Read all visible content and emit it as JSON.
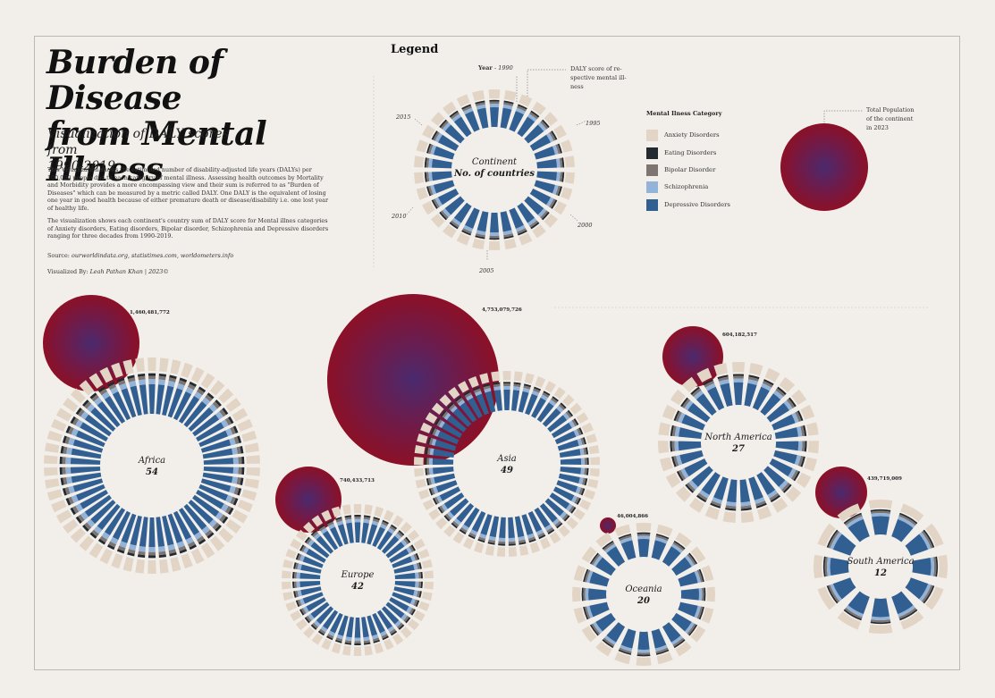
{
  "header": {
    "title_line1": "Burden of Disease",
    "title_line2": "from Mental Illness",
    "subtitle_line1": "Visualization of DALY scores from",
    "subtitle_line2": "1990-2019",
    "description1": "This Visualization shows the estimated number of disability-adjusted life years (DALYs) per 100,000 people due to each category of mental illness. Assessing health outcomes by Mortality and Morbidity provides a more encompassing view and their sum is referred to as \"Burden of Diseases\" which can be measured by a metric called DALY. One DALY is the equivalent of losing one year in good health because of either premature death or disease/disability i.e. one lost year of healthy life.",
    "description2": "The visualization shows each continent's country sum of DALY score for Mental illnes categories of Anxiety disorders, Eating disorders, Bipolar disorder, Schizophrenia and Depressive disorders ranging for three decades from 1990-2019.",
    "source_label": "Source:",
    "source_value": "ourworldindata.org, statistimes.com, worldometers.info",
    "author_label": "Visualized By:",
    "author_value": "Leah Pathan Khan | 2023©"
  },
  "legend": {
    "title": "Legend",
    "year_label": "Year",
    "year_start": "- 1990",
    "daly_note_line1": "DALY score of re-",
    "daly_note_line2": "spective mental ill-",
    "daly_note_line3": "ness",
    "years": [
      "1995",
      "2000",
      "2005",
      "2010",
      "2015"
    ],
    "center_line1": "Continent",
    "center_line2": "No. of countries",
    "category_title": "Mental Ilness Category",
    "categories": [
      {
        "name": "Anxiety Disorders",
        "color": "#e3d5c6"
      },
      {
        "name": "Eating Disorders",
        "color": "#222a30"
      },
      {
        "name": "Bipolar Disorder",
        "color": "#7d7572"
      },
      {
        "name": "Schizophrenia",
        "color": "#94b3d8"
      },
      {
        "name": "Depressive Disorders",
        "color": "#315f91"
      }
    ],
    "population_note_line1": "Total Population",
    "population_note_line2": "of the continent",
    "population_note_line3": "in 2023"
  },
  "colors": {
    "background": "#f2efeb",
    "population_outer": "#8c1027",
    "population_inner": "#4a2a6e"
  },
  "chart_data": {
    "type": "radial-bar",
    "years": [
      1990,
      2019
    ],
    "categories": [
      "Anxiety Disorders",
      "Eating Disorders",
      "Bipolar Disorder",
      "Schizophrenia",
      "Depressive Disorders"
    ],
    "continents": [
      {
        "name": "Africa",
        "countries": "54",
        "population": "1,460,481,772"
      },
      {
        "name": "Asia",
        "countries": "49",
        "population": "4,753,079,726"
      },
      {
        "name": "North America",
        "countries": "27",
        "population": "604,182,517"
      },
      {
        "name": "Europe",
        "countries": "42",
        "population": "740,433,713"
      },
      {
        "name": "Oceania",
        "countries": "20",
        "population": "46,004,866"
      },
      {
        "name": "South America",
        "countries": "12",
        "population": "439,719,009"
      }
    ]
  }
}
